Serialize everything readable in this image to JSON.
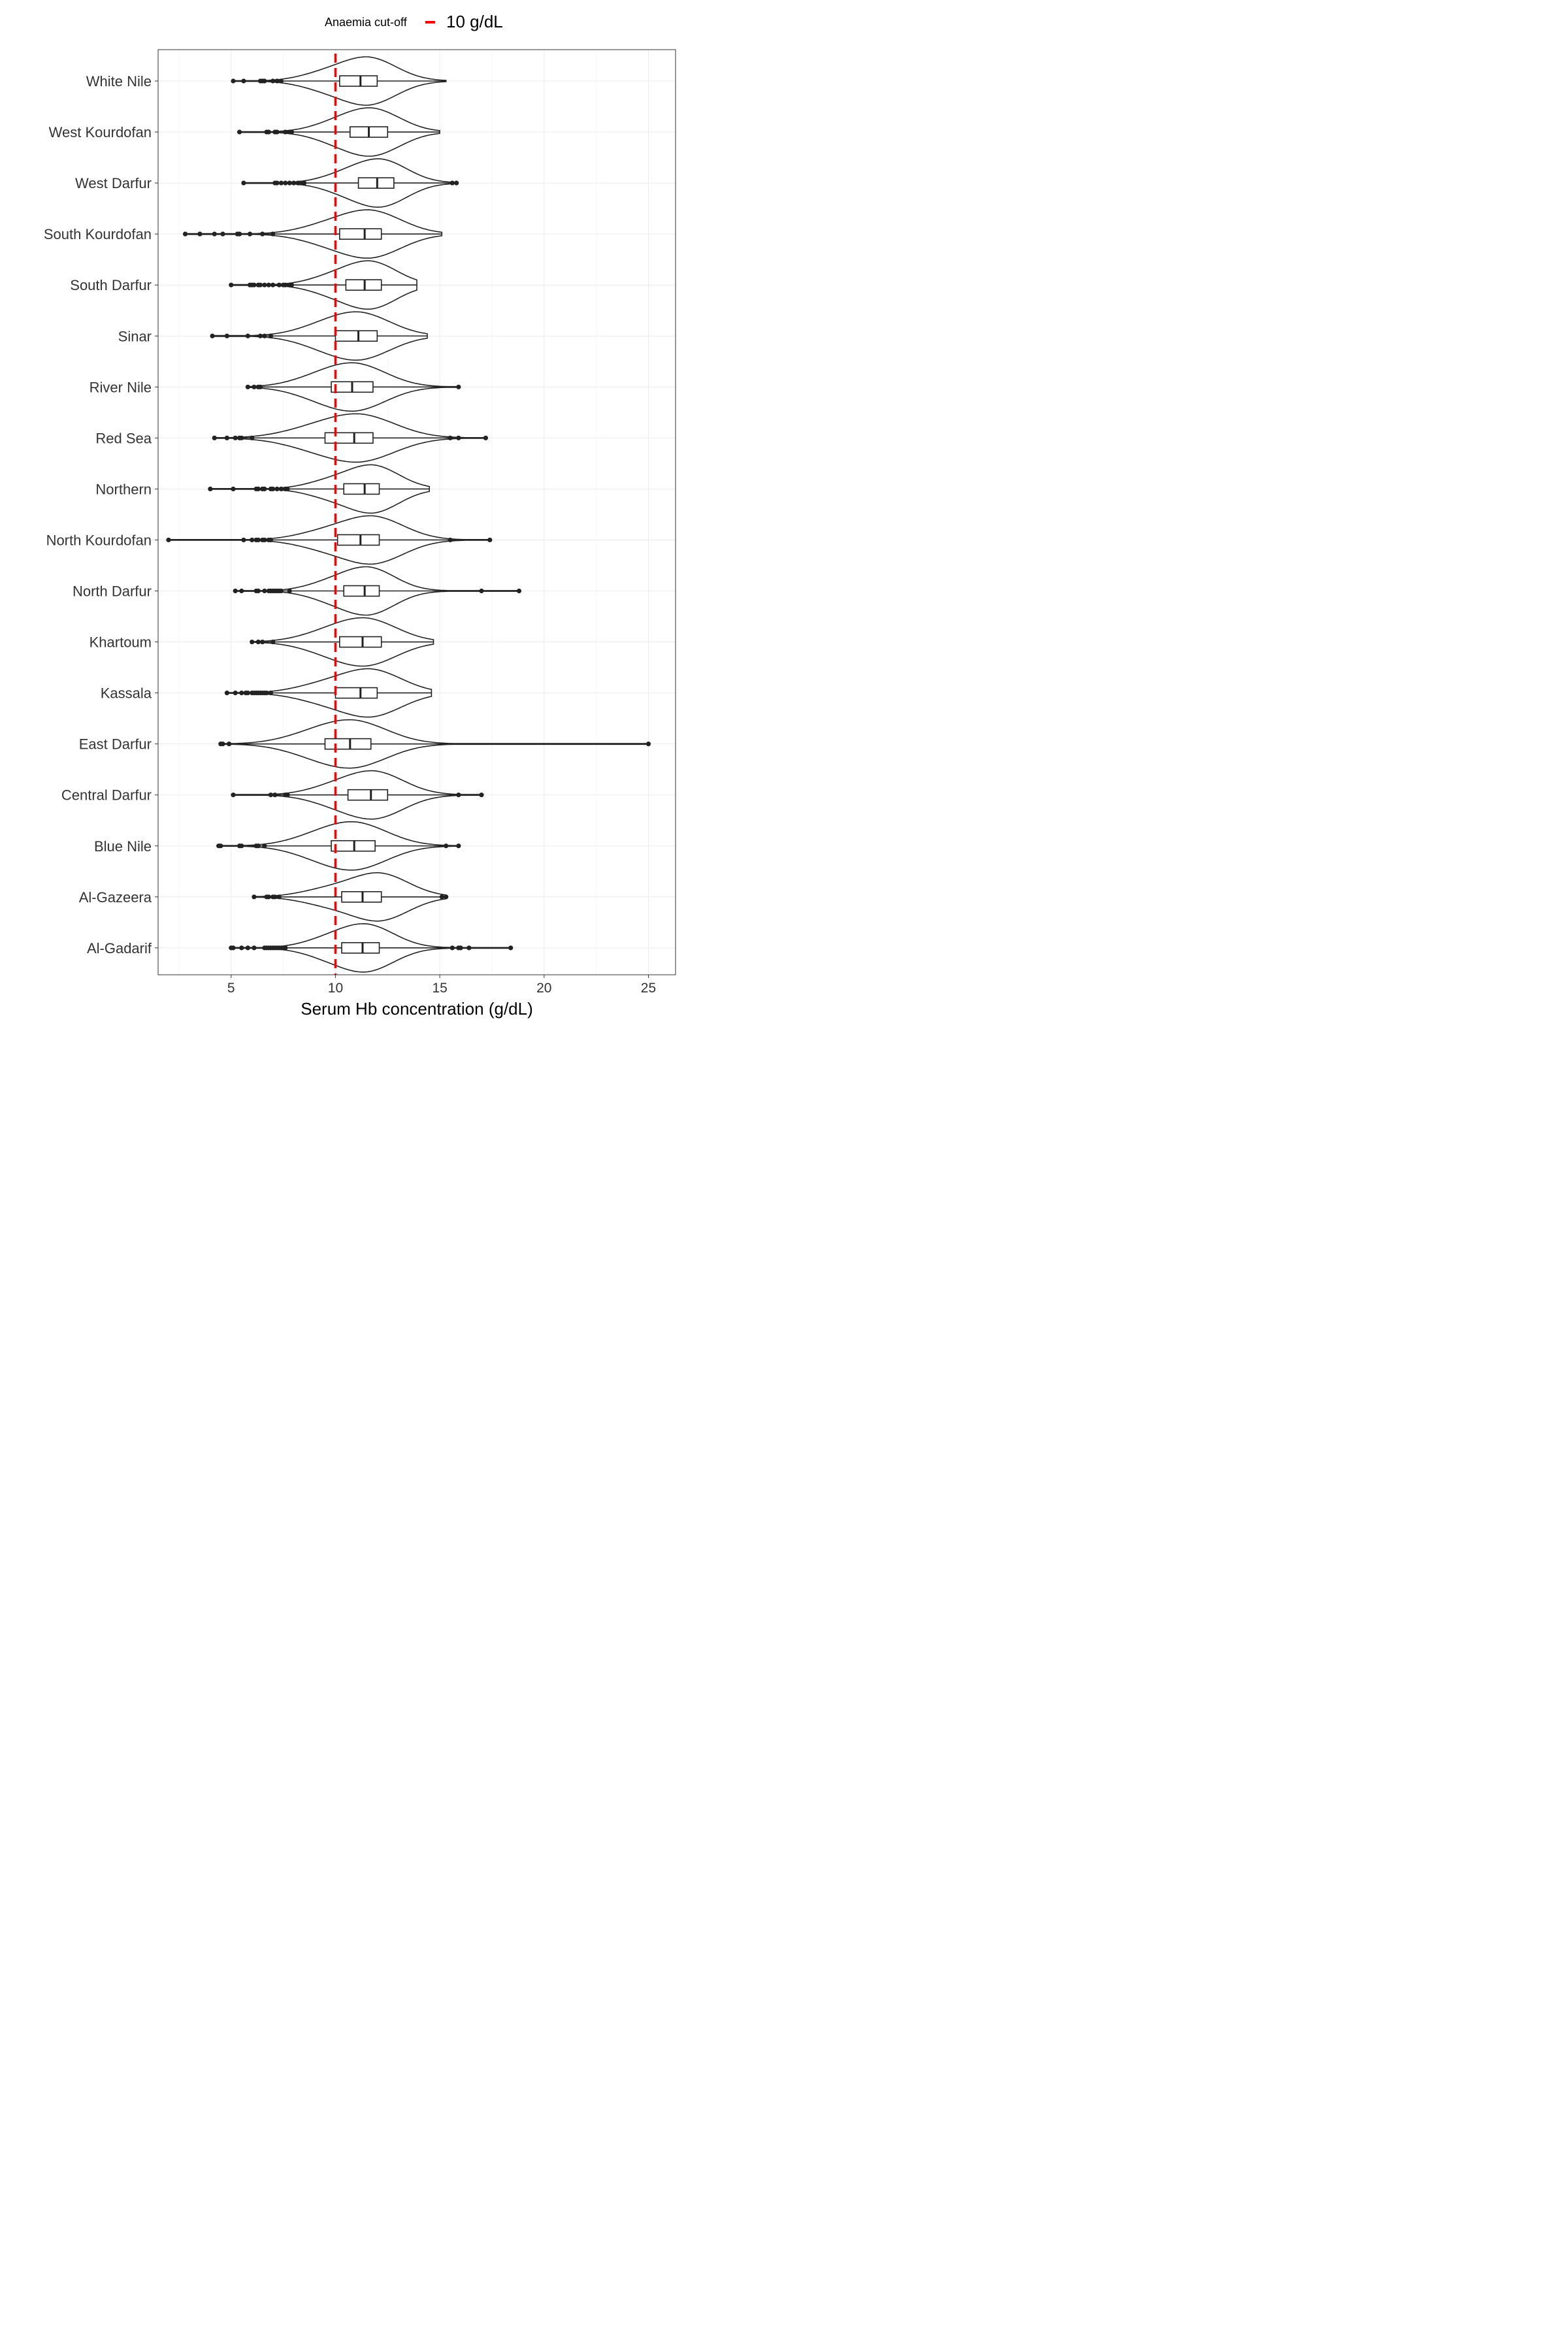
{
  "legend": {
    "title": "Anaemia cut-off",
    "label": "10 g/dL",
    "color": "#ff0000"
  },
  "chart_data": {
    "type": "violin",
    "xlabel": "Serum Hb concentration (g/dL)",
    "ylabel": "",
    "xlim": [
      1.5,
      26.3
    ],
    "xticks": [
      5,
      10,
      15,
      20,
      25
    ],
    "grid": true,
    "legend_position": "top",
    "reference_line": {
      "x": 10,
      "color": "#ff0000",
      "style": "dashed"
    },
    "series": [
      {
        "name": "White Nile",
        "min": 5.1,
        "q1": 10.2,
        "median": 11.2,
        "q3": 12.0,
        "max": 15.3,
        "peak": 11.6,
        "outliers": [
          5.1,
          5.6,
          6.4,
          6.5,
          6.6,
          7.0,
          7.2,
          7.4
        ]
      },
      {
        "name": "West Kourdofan",
        "min": 5.4,
        "q1": 10.7,
        "median": 11.6,
        "q3": 12.5,
        "max": 15.0,
        "peak": 11.8,
        "outliers": [
          5.4,
          6.7,
          6.8,
          7.1,
          7.2,
          7.6,
          7.8,
          7.9
        ]
      },
      {
        "name": "West Darfur",
        "min": 5.6,
        "q1": 11.1,
        "median": 12.0,
        "q3": 12.8,
        "max": 15.8,
        "peak": 12.2,
        "outliers": [
          5.6,
          7.1,
          7.2,
          7.4,
          7.6,
          7.8,
          8.0,
          8.2,
          8.3,
          8.4,
          8.5,
          15.6,
          15.8
        ]
      },
      {
        "name": "South Kourdofan",
        "min": 2.8,
        "q1": 10.2,
        "median": 11.4,
        "q3": 12.2,
        "max": 15.1,
        "peak": 11.7,
        "outliers": [
          2.8,
          3.5,
          4.2,
          4.6,
          5.3,
          5.4,
          5.9,
          6.5,
          7.0
        ]
      },
      {
        "name": "South Darfur",
        "min": 5.0,
        "q1": 10.5,
        "median": 11.4,
        "q3": 12.2,
        "max": 13.9,
        "peak": 11.7,
        "outliers": [
          5.0,
          5.9,
          6.0,
          6.1,
          6.3,
          6.4,
          6.6,
          6.8,
          7.0,
          7.3,
          7.5,
          7.6,
          7.8,
          7.9
        ]
      },
      {
        "name": "Sinar",
        "min": 4.1,
        "q1": 10.0,
        "median": 11.1,
        "q3": 12.0,
        "max": 14.4,
        "peak": 11.2,
        "outliers": [
          4.1,
          4.8,
          5.8,
          6.4,
          6.6,
          6.9
        ]
      },
      {
        "name": "River Nile",
        "min": 5.8,
        "q1": 9.8,
        "median": 10.8,
        "q3": 11.8,
        "max": 15.9,
        "peak": 11.0,
        "outliers": [
          5.8,
          6.1,
          6.3,
          6.4,
          15.9
        ]
      },
      {
        "name": "Red Sea",
        "min": 4.2,
        "q1": 9.5,
        "median": 10.9,
        "q3": 11.8,
        "max": 17.2,
        "peak": 11.2,
        "outliers": [
          4.2,
          4.8,
          5.2,
          5.4,
          5.5,
          6.0,
          15.5,
          15.9,
          17.2
        ]
      },
      {
        "name": "Northern",
        "min": 4.0,
        "q1": 10.4,
        "median": 11.4,
        "q3": 12.1,
        "max": 14.5,
        "peak": 11.8,
        "outliers": [
          4.0,
          5.1,
          6.2,
          6.3,
          6.5,
          6.6,
          6.9,
          7.0,
          7.2,
          7.4,
          7.6,
          7.7
        ]
      },
      {
        "name": "North Kourdofan",
        "min": 2.0,
        "q1": 10.1,
        "median": 11.2,
        "q3": 12.1,
        "max": 17.4,
        "peak": 11.8,
        "outliers": [
          2.0,
          5.6,
          6.0,
          6.2,
          6.3,
          6.5,
          6.6,
          6.8,
          6.9,
          15.5,
          17.4
        ]
      },
      {
        "name": "North Darfur",
        "min": 5.2,
        "q1": 10.4,
        "median": 11.4,
        "q3": 12.1,
        "max": 18.8,
        "peak": 11.6,
        "outliers": [
          5.2,
          5.5,
          6.2,
          6.3,
          6.6,
          6.8,
          6.9,
          7.0,
          7.1,
          7.2,
          7.3,
          7.4,
          7.8,
          17.0,
          18.8
        ]
      },
      {
        "name": "Khartoum",
        "min": 6.0,
        "q1": 10.2,
        "median": 11.3,
        "q3": 12.2,
        "max": 14.7,
        "peak": 11.5,
        "outliers": [
          6.0,
          6.3,
          6.5,
          7.0
        ]
      },
      {
        "name": "Kassala",
        "min": 4.8,
        "q1": 10.0,
        "median": 11.2,
        "q3": 12.0,
        "max": 14.6,
        "peak": 11.7,
        "outliers": [
          4.8,
          5.2,
          5.5,
          5.7,
          5.8,
          6.0,
          6.1,
          6.2,
          6.3,
          6.4,
          6.5,
          6.6,
          6.7,
          6.9
        ]
      },
      {
        "name": "East Darfur",
        "min": 4.5,
        "q1": 9.5,
        "median": 10.7,
        "q3": 11.7,
        "max": 25.0,
        "peak": 10.9,
        "outliers": [
          4.5,
          4.6,
          4.9,
          25.0
        ]
      },
      {
        "name": "Central Darfur",
        "min": 5.1,
        "q1": 10.6,
        "median": 11.7,
        "q3": 12.5,
        "max": 17.0,
        "peak": 11.9,
        "outliers": [
          5.1,
          6.9,
          7.1,
          7.6,
          7.7,
          15.9,
          17.0
        ]
      },
      {
        "name": "Blue Nile",
        "min": 4.4,
        "q1": 9.8,
        "median": 10.9,
        "q3": 11.9,
        "max": 15.9,
        "peak": 11.0,
        "outliers": [
          4.4,
          4.5,
          5.4,
          5.5,
          6.2,
          6.3,
          6.6,
          15.3,
          15.9
        ]
      },
      {
        "name": "Al-Gazeera",
        "min": 6.1,
        "q1": 10.3,
        "median": 11.3,
        "q3": 12.2,
        "max": 15.3,
        "peak": 12.1,
        "outliers": [
          6.1,
          6.7,
          6.8,
          7.0,
          7.1,
          7.3,
          15.1,
          15.3
        ]
      },
      {
        "name": "Al-Gadarif",
        "min": 5.0,
        "q1": 10.3,
        "median": 11.3,
        "q3": 12.1,
        "max": 18.4,
        "peak": 11.5,
        "outliers": [
          5.0,
          5.1,
          5.5,
          5.8,
          6.1,
          6.6,
          6.7,
          6.8,
          6.9,
          7.0,
          7.1,
          7.2,
          7.3,
          7.4,
          7.5,
          7.6,
          15.6,
          15.9,
          16.0,
          16.4,
          18.4
        ]
      }
    ]
  }
}
